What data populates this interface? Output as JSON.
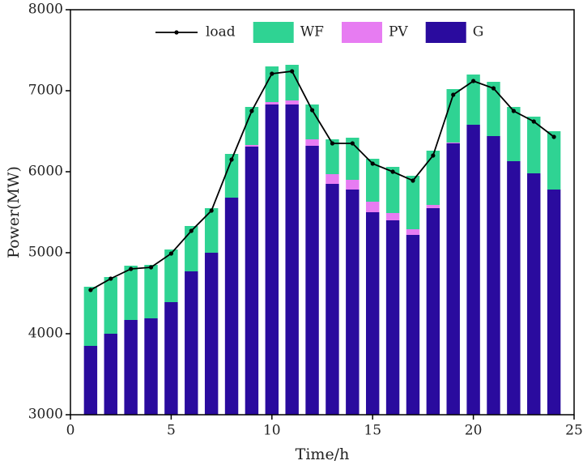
{
  "chart_data": {
    "type": "bar",
    "x_label": "Time/h",
    "y_label": "Power(MW)",
    "x": [
      1,
      2,
      3,
      4,
      5,
      6,
      7,
      8,
      9,
      10,
      11,
      12,
      13,
      14,
      15,
      16,
      17,
      18,
      19,
      20,
      21,
      22,
      23,
      24
    ],
    "series": [
      {
        "name": "load",
        "type": "line",
        "color": "#000000",
        "values": [
          4540,
          4680,
          4800,
          4820,
          4990,
          5270,
          5520,
          6150,
          6750,
          7210,
          7240,
          6760,
          6350,
          6350,
          6100,
          6000,
          5890,
          6200,
          6950,
          7120,
          7030,
          6750,
          6620,
          6430
        ]
      },
      {
        "name": "WF",
        "type": "bar",
        "color": "#2fd393",
        "values": [
          730,
          700,
          670,
          660,
          650,
          560,
          550,
          540,
          470,
          440,
          440,
          430,
          430,
          520,
          530,
          570,
          660,
          670,
          660,
          620,
          670,
          670,
          700,
          720
        ]
      },
      {
        "name": "PV",
        "type": "bar",
        "color": "#e77cf2",
        "values": [
          0,
          0,
          0,
          0,
          0,
          0,
          0,
          0,
          20,
          30,
          50,
          80,
          120,
          120,
          130,
          90,
          70,
          40,
          10,
          0,
          0,
          0,
          0,
          0
        ]
      },
      {
        "name": "G",
        "type": "bar",
        "color": "#2a0b9e",
        "values": [
          3850,
          4000,
          4170,
          4190,
          4390,
          4770,
          5000,
          5680,
          6310,
          6830,
          6830,
          6320,
          5850,
          5780,
          5500,
          5400,
          5220,
          5550,
          6350,
          6580,
          6440,
          6130,
          5980,
          5780
        ]
      }
    ],
    "xlim": [
      0,
      25
    ],
    "xticks": [
      0,
      5,
      10,
      15,
      20,
      25
    ],
    "ylim": [
      3000,
      8000
    ],
    "yticks": [
      3000,
      4000,
      5000,
      6000,
      7000,
      8000
    ],
    "legend": "top"
  }
}
